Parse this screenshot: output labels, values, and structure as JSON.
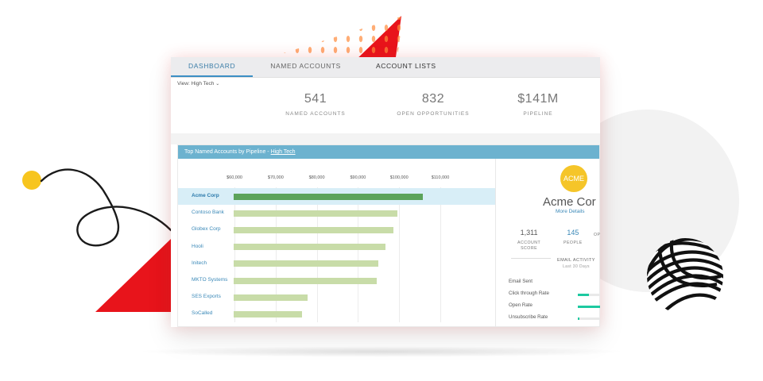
{
  "tabs": [
    {
      "label": "DASHBOARD",
      "active": true
    },
    {
      "label": "NAMED ACCOUNTS",
      "active": false
    },
    {
      "label": "ACCOUNT LISTS",
      "active": false
    }
  ],
  "view": {
    "label": "View:",
    "value": "High Tech"
  },
  "stats": [
    {
      "value": "541",
      "label": "NAMED ACCOUNTS"
    },
    {
      "value": "832",
      "label": "OPEN OPPORTUNITIES"
    },
    {
      "value": "$141M",
      "label": "PIPELINE"
    }
  ],
  "panel": {
    "title": "Top Named Accounts by Pipeline - ",
    "link": "High Tech"
  },
  "chart_data": {
    "type": "bar",
    "orientation": "horizontal",
    "categories": [
      "Acme Corp",
      "Contoso Bank",
      "Globex Corp",
      "Hooli",
      "Initech",
      "MKTO Systems",
      "SES Exports",
      "SoCalled"
    ],
    "values": [
      105800,
      99500,
      98700,
      96600,
      94900,
      94600,
      77700,
      76500
    ],
    "highlighted": "Acme Corp",
    "ticks": [
      "$60,000",
      "$70,000",
      "$80,000",
      "$90,000",
      "$100,000",
      "$110,000"
    ],
    "tick_values": [
      60000,
      70000,
      80000,
      90000,
      100000,
      110000
    ],
    "xlim": [
      59800,
      110000
    ],
    "colors": {
      "bar": "#c8dca8",
      "highlight": "#5ca35a",
      "row_highlight": "#d8eef7"
    }
  },
  "account": {
    "logo_text": "ACME",
    "name": "Acme Cor",
    "more": "More Details",
    "kpis": [
      {
        "value": "1,311",
        "label": "ACCOUNT\nSCORE"
      },
      {
        "value": "145",
        "label": "PEOPLE"
      },
      {
        "value": "",
        "label": "OP"
      }
    ],
    "email_title": "EMAIL ACTIVITY",
    "email_sub": "Last 30 Days",
    "metrics": [
      {
        "label": "Email Sent",
        "fill": 0
      },
      {
        "label": "Click through Rate",
        "fill": 0.45
      },
      {
        "label": "Open Rate",
        "fill": 1.0
      },
      {
        "label": "Unsubscribe Rate",
        "fill": 0.06
      }
    ]
  },
  "colors": {
    "accent": "#3c8fc4",
    "header": "#6cb2cf",
    "red": "#e8141b",
    "yellow": "#f7c51e",
    "teal": "#1dc9a0"
  }
}
